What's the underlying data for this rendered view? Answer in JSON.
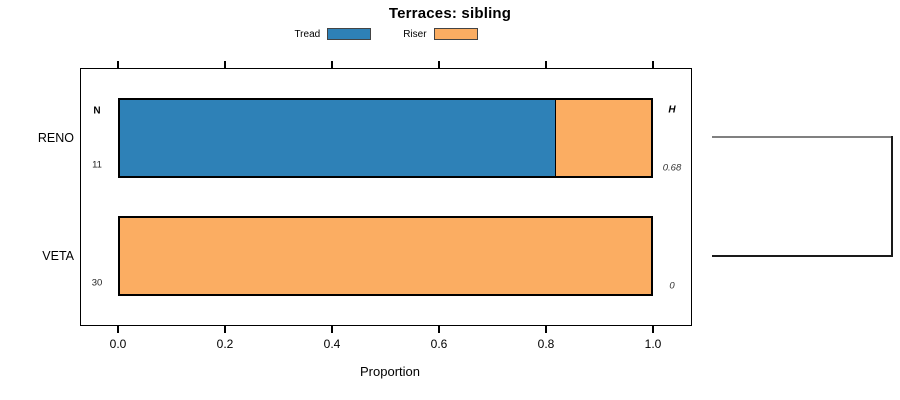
{
  "title": "Terraces: sibling",
  "legend": {
    "items": [
      {
        "label": "Tread",
        "color": "#2E81B7"
      },
      {
        "label": "Riser",
        "color": "#FBAD62"
      }
    ]
  },
  "table_headers": {
    "n": "N",
    "h": "H"
  },
  "axis": {
    "xlabel": "Proportion"
  },
  "tree": {
    "top_branch_color": "#808080",
    "bottom_branch_color": "#1a1a1a",
    "connector_color": "#1a1a1a"
  },
  "chart_data": {
    "type": "bar",
    "orientation": "horizontal",
    "stacked": true,
    "title": "Terraces: sibling",
    "xlabel": "Proportion",
    "xlim": [
      0,
      1
    ],
    "xticks": [
      0.0,
      0.2,
      0.4,
      0.6,
      0.8,
      1.0
    ],
    "grid": false,
    "legend_position": "top",
    "categories": [
      "RENO",
      "VETA"
    ],
    "series": [
      {
        "name": "Tread",
        "color": "#2E81B7",
        "values": [
          0.818,
          0
        ]
      },
      {
        "name": "Riser",
        "color": "#FBAD62",
        "values": [
          0.182,
          1.0
        ]
      }
    ],
    "annotations": {
      "n_header": "N",
      "h_header": "H",
      "n_values": [
        "11",
        "30"
      ],
      "h_values": [
        "0.68",
        "0"
      ]
    }
  }
}
